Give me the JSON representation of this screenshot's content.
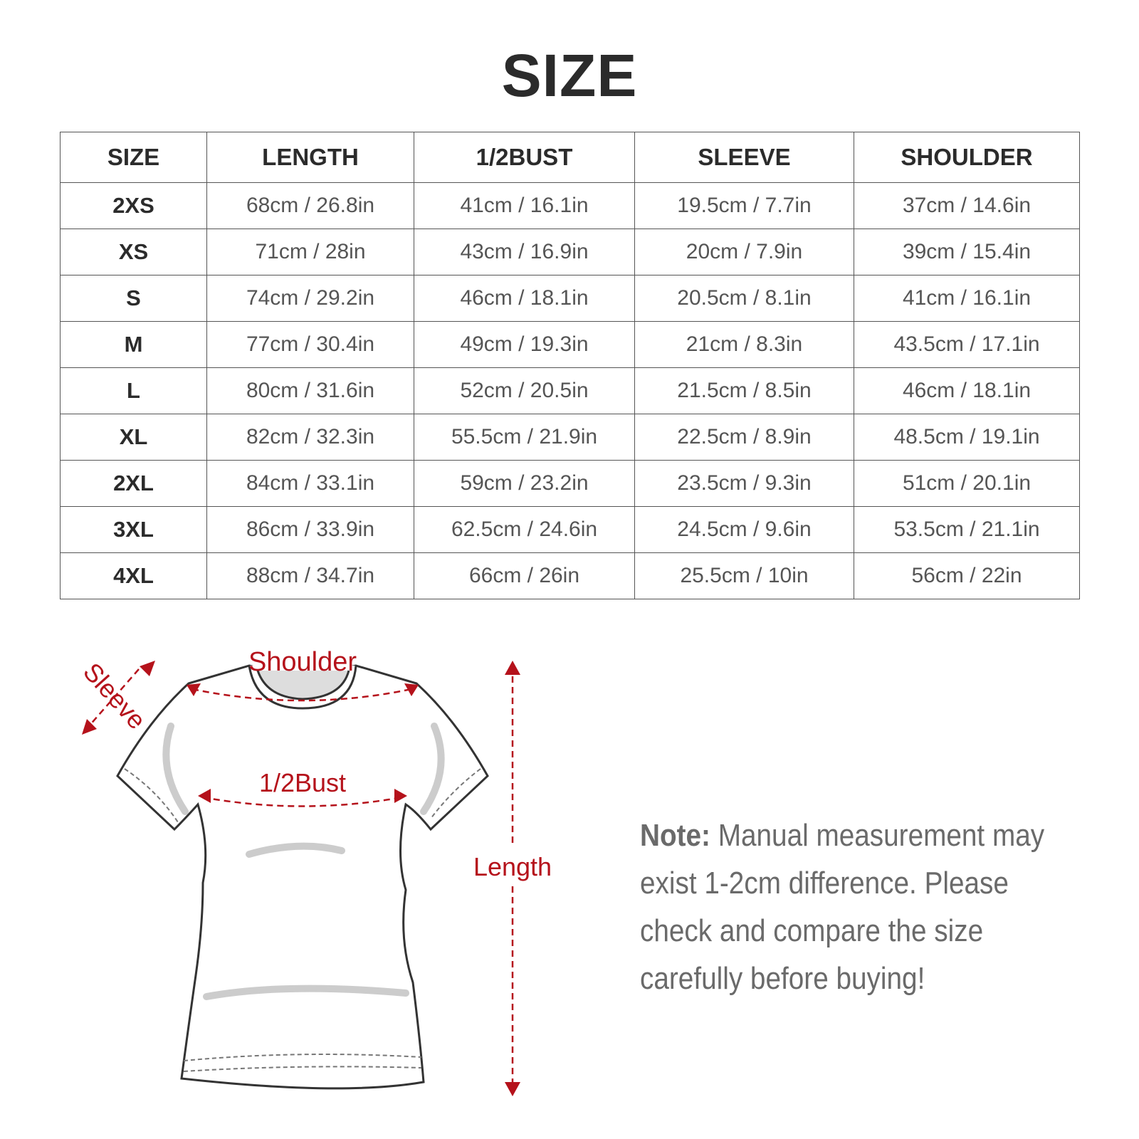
{
  "title": "SIZE",
  "table": {
    "headers": [
      "SIZE",
      "LENGTH",
      "1/2BUST",
      "SLEEVE",
      "SHOULDER"
    ],
    "rows": [
      [
        "2XS",
        "68cm / 26.8in",
        "41cm / 16.1in",
        "19.5cm / 7.7in",
        "37cm / 14.6in"
      ],
      [
        "XS",
        "71cm / 28in",
        "43cm / 16.9in",
        "20cm / 7.9in",
        "39cm / 15.4in"
      ],
      [
        "S",
        "74cm / 29.2in",
        "46cm / 18.1in",
        "20.5cm / 8.1in",
        "41cm / 16.1in"
      ],
      [
        "M",
        "77cm / 30.4in",
        "49cm / 19.3in",
        "21cm / 8.3in",
        "43.5cm / 17.1in"
      ],
      [
        "L",
        "80cm / 31.6in",
        "52cm / 20.5in",
        "21.5cm / 8.5in",
        "46cm / 18.1in"
      ],
      [
        "XL",
        "82cm / 32.3in",
        "55.5cm / 21.9in",
        "22.5cm / 8.9in",
        "48.5cm / 19.1in"
      ],
      [
        "2XL",
        "84cm / 33.1in",
        "59cm / 23.2in",
        "23.5cm / 9.3in",
        "51cm / 20.1in"
      ],
      [
        "3XL",
        "86cm / 33.9in",
        "62.5cm / 24.6in",
        "24.5cm / 9.6in",
        "53.5cm / 21.1in"
      ],
      [
        "4XL",
        "88cm / 34.7in",
        "66cm / 26in",
        "25.5cm / 10in",
        "56cm / 22in"
      ]
    ]
  },
  "diagram": {
    "labels": {
      "shoulder": "Shoulder",
      "sleeve": "Sleeve",
      "bust": "1/2Bust",
      "length": "Length"
    },
    "accent_color": "#b5121b"
  },
  "note": {
    "label": "Note:",
    "text": "Manual measurement may exist 1-2cm difference. Please check and compare the size carefully before buying!"
  }
}
